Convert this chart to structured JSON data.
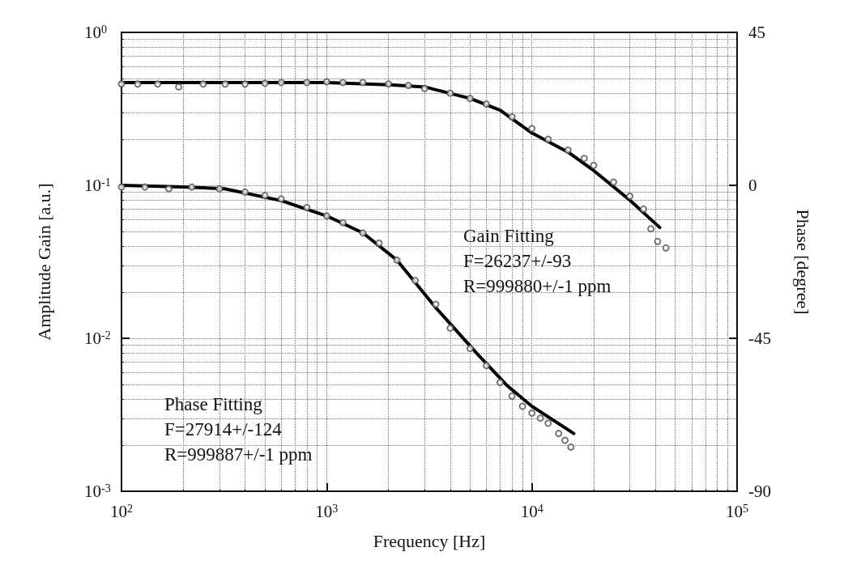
{
  "chart_data": {
    "type": "line",
    "xlabel": "Frequency [Hz]",
    "ylabel": "Amplitude Gain [a.u.]",
    "y2label": "Phase [degree]",
    "log": "xy",
    "grid": true,
    "xlim": [
      100,
      100000
    ],
    "xticks": [
      {
        "value": 100,
        "label": "10$^{2}$"
      },
      {
        "value": 1000,
        "label": "10$^{3}$"
      },
      {
        "value": 10000,
        "label": "10$^{4}$"
      },
      {
        "value": 100000,
        "label": "10$^{5}$"
      }
    ],
    "ylim": [
      0.001,
      1
    ],
    "yticks": [
      {
        "value": 0.001,
        "label": "10$^{-3}$"
      },
      {
        "value": 0.01,
        "label": "10$^{-2}$"
      },
      {
        "value": 0.1,
        "label": "10$^{-1}$"
      },
      {
        "value": 1,
        "label": "10$^{0}$"
      }
    ],
    "y2lim": [
      -90,
      45
    ],
    "y2ticks": [
      -90,
      -45,
      0,
      45
    ],
    "series": [
      {
        "type": "scatter",
        "marker": "circle",
        "color": "#555555",
        "x": [
          100,
          120,
          150,
          190,
          250,
          320,
          400,
          500,
          600,
          800,
          1000,
          1200,
          1500,
          2000,
          2500,
          3000,
          4000,
          5000,
          6000,
          8000,
          10000,
          12000,
          15000,
          18000,
          20000,
          25000,
          30000,
          35000,
          38000,
          41000,
          45000
        ],
        "values": [
          0.46,
          0.46,
          0.46,
          0.44,
          0.46,
          0.46,
          0.46,
          0.465,
          0.47,
          0.47,
          0.475,
          0.47,
          0.47,
          0.46,
          0.45,
          0.43,
          0.4,
          0.37,
          0.34,
          0.28,
          0.235,
          0.2,
          0.17,
          0.15,
          0.135,
          0.105,
          0.085,
          0.07,
          0.052,
          0.043,
          0.039
        ]
      },
      {
        "marker": "none",
        "color": "#000000",
        "x": [
          100,
          1000,
          2000,
          3000,
          5000,
          7000,
          10000,
          15000,
          20000,
          30000,
          42000
        ],
        "values": [
          0.47,
          0.47,
          0.455,
          0.44,
          0.37,
          0.31,
          0.22,
          0.165,
          0.125,
          0.08,
          0.053
        ]
      },
      {
        "type": "scatter",
        "axis": "y2",
        "marker": "circle",
        "color": "#555555",
        "x": [
          100,
          130,
          170,
          220,
          300,
          400,
          500,
          600,
          800,
          1000,
          1200,
          1500,
          1800,
          2200,
          2700,
          3400,
          4000,
          5000,
          6000,
          7000,
          8000,
          9000,
          10000,
          11000,
          12000,
          13500,
          14500,
          15500
        ],
        "values": [
          -0.5,
          -0.5,
          -1,
          -0.5,
          -1,
          -2,
          -3,
          -4,
          -6.5,
          -9,
          -11,
          -14,
          -17,
          -22,
          -28,
          -35,
          -42,
          -48,
          -53,
          -58,
          -62,
          -65,
          -67,
          -68.5,
          -70,
          -73,
          -75,
          -77
        ]
      },
      {
        "axis": "y2",
        "marker": "none",
        "color": "#000000",
        "x": [
          100,
          200,
          318,
          600,
          1000,
          1500,
          2200,
          3400,
          5400,
          7600,
          10000,
          16000
        ],
        "values": [
          0,
          -0.5,
          -1,
          -4.5,
          -9,
          -14,
          -22,
          -36,
          -49.5,
          -59,
          -65,
          -73
        ]
      }
    ],
    "annotations": [
      "Gain Fitting\nF=26237+/-93\nR=999880+/-1 ppm",
      "Phase Fitting\nF=27914+/-124\nR=999887+/-1 ppm"
    ]
  }
}
